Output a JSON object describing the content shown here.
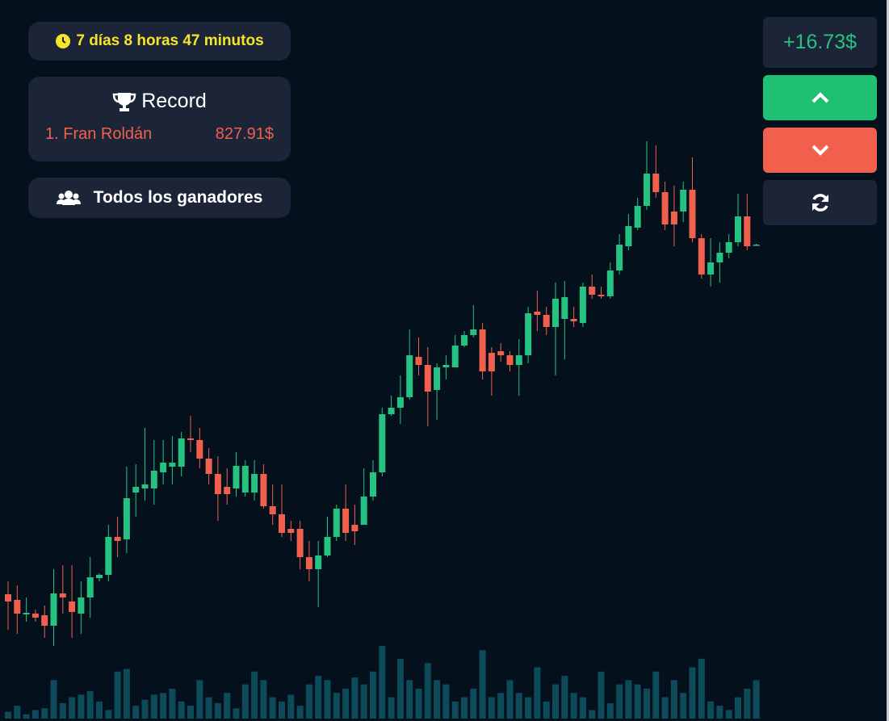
{
  "ui": {
    "timer": "7 días 8 horas 47 minutos",
    "record_title": "Record",
    "record_name": "1. Fran Roldán",
    "record_amount": "827.91$",
    "winners_button": "Todos los ganadores",
    "profit": "+16.73$"
  },
  "chart_data": {
    "type": "candlestick",
    "up_color": "#26c281",
    "down_color": "#f0604d",
    "volume_color": "#0d4a5a",
    "open": [
      164,
      157,
      139,
      140,
      138,
      125,
      165,
      155,
      140,
      160,
      184,
      188,
      235,
      232,
      290,
      295,
      295,
      315,
      322,
      322,
      357,
      355,
      332,
      313,
      297,
      295,
      290,
      290,
      313,
      273,
      263,
      245,
      245,
      210,
      195,
      212,
      235,
      270,
      250,
      250,
      285,
      315,
      387,
      395,
      408,
      458,
      448,
      417,
      445,
      445,
      472,
      485,
      492,
      463,
      465,
      460,
      448,
      460,
      514,
      510,
      495,
      505,
      505,
      500,
      545,
      535,
      533,
      565,
      595,
      618,
      645,
      685,
      662,
      638,
      638,
      665,
      605,
      560,
      575,
      587,
      600,
      632,
      597
    ],
    "high": [
      180,
      175,
      160,
      145,
      150,
      195,
      200,
      200,
      180,
      210,
      190,
      250,
      260,
      322,
      325,
      370,
      355,
      355,
      360,
      365,
      385,
      370,
      345,
      335,
      320,
      340,
      330,
      330,
      325,
      300,
      300,
      255,
      255,
      230,
      230,
      260,
      275,
      300,
      275,
      320,
      330,
      395,
      410,
      435,
      492,
      482,
      470,
      450,
      460,
      485,
      490,
      522,
      500,
      470,
      475,
      465,
      480,
      520,
      540,
      520,
      550,
      552,
      520,
      550,
      560,
      545,
      575,
      610,
      635,
      655,
      725,
      720,
      675,
      670,
      675,
      705,
      610,
      605,
      600,
      610,
      660,
      660,
      598
    ],
    "low": [
      120,
      115,
      130,
      130,
      110,
      100,
      140,
      110,
      115,
      135,
      180,
      180,
      210,
      215,
      260,
      280,
      275,
      300,
      300,
      310,
      340,
      320,
      300,
      255,
      275,
      285,
      285,
      280,
      270,
      250,
      235,
      230,
      195,
      180,
      148,
      210,
      230,
      230,
      225,
      250,
      280,
      310,
      385,
      375,
      405,
      435,
      372,
      380,
      430,
      445,
      470,
      482,
      430,
      410,
      452,
      440,
      410,
      450,
      490,
      485,
      435,
      455,
      495,
      495,
      530,
      530,
      530,
      560,
      590,
      615,
      640,
      655,
      615,
      595,
      625,
      600,
      555,
      545,
      550,
      580,
      595,
      590,
      596
    ],
    "close": [
      155,
      140,
      141,
      135,
      125,
      165,
      160,
      142,
      160,
      185,
      188,
      235,
      230,
      283,
      297,
      300,
      317,
      327,
      327,
      357,
      355,
      332,
      313,
      288,
      288,
      323,
      323,
      313,
      273,
      263,
      240,
      240,
      210,
      195,
      212,
      235,
      270,
      240,
      242,
      285,
      315,
      387,
      395,
      408,
      460,
      448,
      415,
      445,
      448,
      472,
      485,
      492,
      440,
      440,
      460,
      448,
      460,
      512,
      510,
      495,
      530,
      532,
      502,
      545,
      535,
      533,
      565,
      597,
      620,
      645,
      685,
      662,
      622,
      622,
      665,
      605,
      560,
      575,
      587,
      600,
      632,
      595,
      597
    ],
    "volume": [
      8,
      15,
      5,
      10,
      12,
      45,
      18,
      25,
      28,
      32,
      20,
      10,
      55,
      58,
      15,
      22,
      28,
      30,
      35,
      20,
      15,
      45,
      25,
      18,
      30,
      12,
      40,
      55,
      45,
      25,
      20,
      28,
      15,
      40,
      50,
      45,
      30,
      35,
      48,
      40,
      55,
      85,
      25,
      70,
      45,
      35,
      65,
      45,
      40,
      20,
      25,
      35,
      80,
      25,
      30,
      45,
      30,
      25,
      60,
      20,
      40,
      50,
      30,
      25,
      10,
      55,
      18,
      40,
      45,
      40,
      35,
      55,
      25,
      45,
      30,
      60,
      70,
      20,
      15,
      10,
      25,
      35,
      45
    ]
  }
}
